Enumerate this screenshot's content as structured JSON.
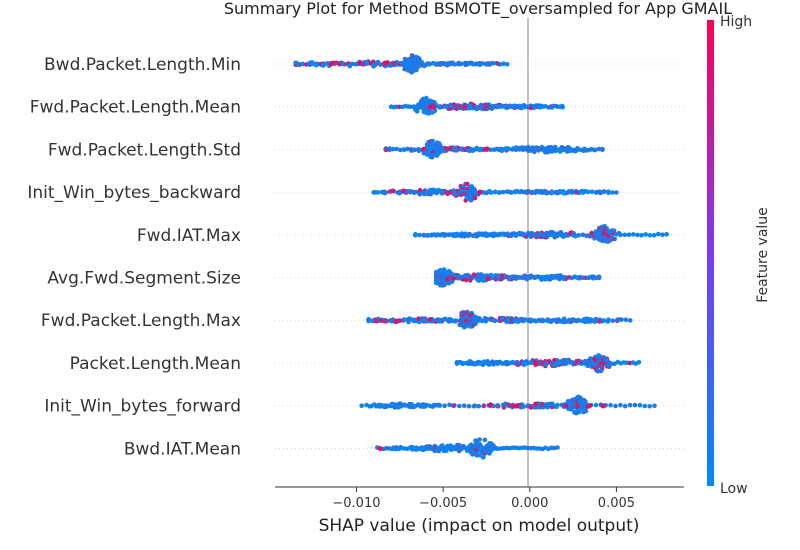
{
  "chart_data": {
    "type": "scatter",
    "subtype": "shap-beeswarm",
    "title": "Summary Plot for Method BSMOTE_oversampled for App GMAIL",
    "xlabel": "SHAP value (impact on model output)",
    "xlim": [
      -0.0147,
      0.0089
    ],
    "xticks": [
      {
        "value": -0.01,
        "label": "−0.010"
      },
      {
        "value": -0.005,
        "label": "−0.005"
      },
      {
        "value": 0.0,
        "label": "0.000"
      },
      {
        "value": 0.005,
        "label": "0.005"
      }
    ],
    "grid": false,
    "colorbar": {
      "title": "Feature value",
      "high_label": "High",
      "low_label": "Low",
      "low_color": "#008afb",
      "high_color": "#ff0052"
    },
    "features": [
      {
        "name": "Bwd.Packet.Length.Min",
        "range": [
          -0.0135,
          -0.0013
        ],
        "clusters": [
          {
            "center": -0.0068,
            "spread": 0.0003,
            "n": 70,
            "height": 18,
            "red": 0.02
          },
          {
            "center": -0.0095,
            "spread": 0.0022,
            "n": 80,
            "height": 5,
            "red": 0.3
          },
          {
            "center": -0.004,
            "spread": 0.0013,
            "n": 40,
            "height": 3,
            "red": 0.05
          }
        ]
      },
      {
        "name": "Fwd.Packet.Length.Mean",
        "range": [
          -0.008,
          0.0019
        ],
        "clusters": [
          {
            "center": -0.006,
            "spread": 0.0003,
            "n": 60,
            "height": 18,
            "red": 0.05
          },
          {
            "center": -0.0032,
            "spread": 0.0011,
            "n": 90,
            "height": 6,
            "red": 0.3
          },
          {
            "center": -0.0005,
            "spread": 0.0012,
            "n": 40,
            "height": 3,
            "red": 0.05
          }
        ]
      },
      {
        "name": "Fwd.Packet.Length.Std",
        "range": [
          -0.0083,
          0.0042
        ],
        "clusters": [
          {
            "center": -0.0056,
            "spread": 0.0003,
            "n": 60,
            "height": 18,
            "red": 0.05
          },
          {
            "center": -0.0045,
            "spread": 0.0018,
            "n": 80,
            "height": 4,
            "red": 0.25
          },
          {
            "center": 0.001,
            "spread": 0.0014,
            "n": 70,
            "height": 6,
            "red": 0.02
          }
        ]
      },
      {
        "name": "Init_Win_bytes_backward",
        "range": [
          -0.009,
          0.005
        ],
        "clusters": [
          {
            "center": -0.0036,
            "spread": 0.0003,
            "n": 60,
            "height": 20,
            "red": 0.25
          },
          {
            "center": -0.0055,
            "spread": 0.0014,
            "n": 80,
            "height": 5,
            "red": 0.25
          },
          {
            "center": 0.0015,
            "spread": 0.0017,
            "n": 50,
            "height": 3,
            "red": 0.02
          }
        ]
      },
      {
        "name": "Fwd.IAT.Max",
        "range": [
          -0.0066,
          0.0079
        ],
        "clusters": [
          {
            "center": 0.0043,
            "spread": 0.0003,
            "n": 70,
            "height": 18,
            "red": 0.1
          },
          {
            "center": 0.0012,
            "spread": 0.0015,
            "n": 70,
            "height": 6,
            "red": 0.3
          },
          {
            "center": -0.003,
            "spread": 0.0022,
            "n": 80,
            "height": 3,
            "red": 0.02
          }
        ]
      },
      {
        "name": "Avg.Fwd.Segment.Size",
        "range": [
          -0.0054,
          0.004
        ],
        "clusters": [
          {
            "center": -0.005,
            "spread": 0.0003,
            "n": 60,
            "height": 18,
            "red": 0.05
          },
          {
            "center": -0.0032,
            "spread": 0.0011,
            "n": 80,
            "height": 7,
            "red": 0.3
          },
          {
            "center": 0.0012,
            "spread": 0.0012,
            "n": 50,
            "height": 5,
            "red": 0.02
          }
        ]
      },
      {
        "name": "Fwd.Packet.Length.Max",
        "range": [
          -0.0093,
          0.0058
        ],
        "clusters": [
          {
            "center": -0.0036,
            "spread": 0.0003,
            "n": 60,
            "height": 20,
            "red": 0.2
          },
          {
            "center": -0.0065,
            "spread": 0.0018,
            "n": 80,
            "height": 4,
            "red": 0.3
          },
          {
            "center": -0.002,
            "spread": 0.0012,
            "n": 50,
            "height": 5,
            "red": 0.2
          },
          {
            "center": 0.0025,
            "spread": 0.0015,
            "n": 50,
            "height": 4,
            "red": 0.02
          }
        ]
      },
      {
        "name": "Packet.Length.Mean",
        "range": [
          -0.0042,
          0.0063
        ],
        "clusters": [
          {
            "center": 0.004,
            "spread": 0.0003,
            "n": 60,
            "height": 18,
            "red": 0.2
          },
          {
            "center": 0.0015,
            "spread": 0.0013,
            "n": 70,
            "height": 7,
            "red": 0.3
          },
          {
            "center": -0.0025,
            "spread": 0.0011,
            "n": 40,
            "height": 4,
            "red": 0.02
          }
        ]
      },
      {
        "name": "Init_Win_bytes_forward",
        "range": [
          -0.0097,
          0.0072
        ],
        "clusters": [
          {
            "center": 0.0028,
            "spread": 0.0003,
            "n": 70,
            "height": 18,
            "red": 0.05
          },
          {
            "center": 0.0,
            "spread": 0.0016,
            "n": 70,
            "height": 5,
            "red": 0.35
          },
          {
            "center": -0.0075,
            "spread": 0.001,
            "n": 60,
            "height": 4,
            "red": 0.0
          }
        ]
      },
      {
        "name": "Bwd.IAT.Mean",
        "range": [
          -0.0088,
          0.0016
        ],
        "clusters": [
          {
            "center": -0.0028,
            "spread": 0.0004,
            "n": 70,
            "height": 20,
            "red": 0.15
          },
          {
            "center": -0.0045,
            "spread": 0.001,
            "n": 60,
            "height": 7,
            "red": 0.05
          },
          {
            "center": -0.0065,
            "spread": 0.001,
            "n": 30,
            "height": 3,
            "red": 0.02
          }
        ]
      }
    ]
  }
}
